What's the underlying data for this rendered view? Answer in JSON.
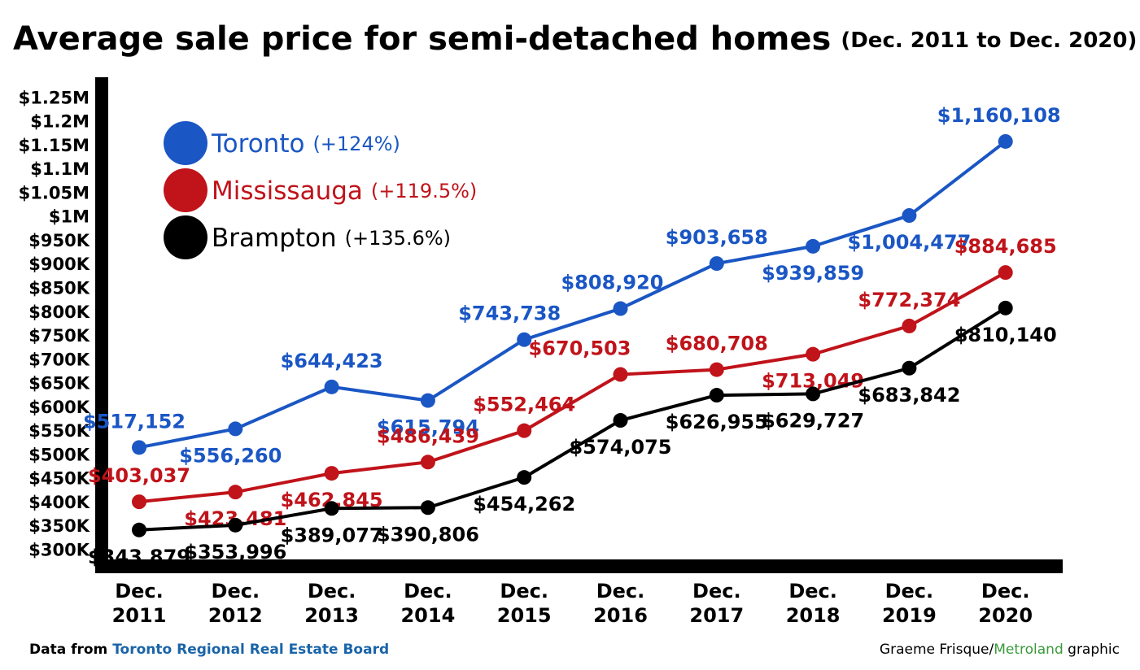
{
  "chart_data": {
    "type": "line",
    "title": "Average sale price for semi-detached homes",
    "subtitle": "(Dec. 2011 to Dec. 2020)",
    "categories": [
      "Dec. 2011",
      "Dec. 2012",
      "Dec. 2013",
      "Dec. 2014",
      "Dec. 2015",
      "Dec. 2016",
      "Dec. 2017",
      "Dec. 2018",
      "Dec. 2019",
      "Dec. 2020"
    ],
    "series": [
      {
        "name": "Toronto",
        "change_label": "(+124%)",
        "color": "#1a56c4",
        "values": [
          517152,
          556260,
          644423,
          615794,
          743738,
          808920,
          903658,
          939859,
          1004477,
          1160108
        ],
        "value_labels": [
          "$517,152",
          "$556,260",
          "$644,423",
          "$615,794",
          "$743,738",
          "$808,920",
          "$903,658",
          "$939,859",
          "$1,004,477",
          "$1,160,108"
        ]
      },
      {
        "name": "Mississauga",
        "change_label": "(+119.5%)",
        "color": "#c0131a",
        "values": [
          403037,
          423481,
          462845,
          486439,
          552464,
          670503,
          680708,
          713049,
          772374,
          884685
        ],
        "value_labels": [
          "$403,037",
          "$423,481",
          "$462,845",
          "$486,439",
          "$552,464",
          "$670,503",
          "$680,708",
          "$713,049",
          "$772,374",
          "$884,685"
        ]
      },
      {
        "name": "Brampton",
        "change_label": "(+135.6%)",
        "color": "#000000",
        "values": [
          343879,
          353996,
          389077,
          390806,
          454262,
          574075,
          626955,
          629727,
          683842,
          810140
        ],
        "value_labels": [
          "$343,879",
          "$353,996",
          "$389,077",
          "$390,806",
          "$454,262",
          "$574,075",
          "$626,955",
          "$629,727",
          "$683,842",
          "$810,140"
        ]
      }
    ],
    "ylim": [
      270000,
      1295000
    ],
    "yticks": [
      {
        "value": 300000,
        "label": "$300K"
      },
      {
        "value": 350000,
        "label": "$350K"
      },
      {
        "value": 400000,
        "label": "$400K"
      },
      {
        "value": 450000,
        "label": "$450K"
      },
      {
        "value": 500000,
        "label": "$500K"
      },
      {
        "value": 550000,
        "label": "$550K"
      },
      {
        "value": 600000,
        "label": "$600K"
      },
      {
        "value": 650000,
        "label": "$650K"
      },
      {
        "value": 700000,
        "label": "$700K"
      },
      {
        "value": 750000,
        "label": "$750K"
      },
      {
        "value": 800000,
        "label": "$800K"
      },
      {
        "value": 850000,
        "label": "$850K"
      },
      {
        "value": 900000,
        "label": "$900K"
      },
      {
        "value": 950000,
        "label": "$950K"
      },
      {
        "value": 1000000,
        "label": "$1M"
      },
      {
        "value": 1050000,
        "label": "$1.05M"
      },
      {
        "value": 1100000,
        "label": "$1.1M"
      },
      {
        "value": 1150000,
        "label": "$1.15M"
      },
      {
        "value": 1200000,
        "label": "$1.2M"
      },
      {
        "value": 1250000,
        "label": "$1.25M"
      }
    ],
    "grid": false,
    "legend": "top-left",
    "source_prefix": "Data from ",
    "source": "Toronto Regional Real Estate Board",
    "credit_author": "Graeme Frisque/",
    "credit_org": "Metroland",
    "credit_suffix": " graphic"
  }
}
